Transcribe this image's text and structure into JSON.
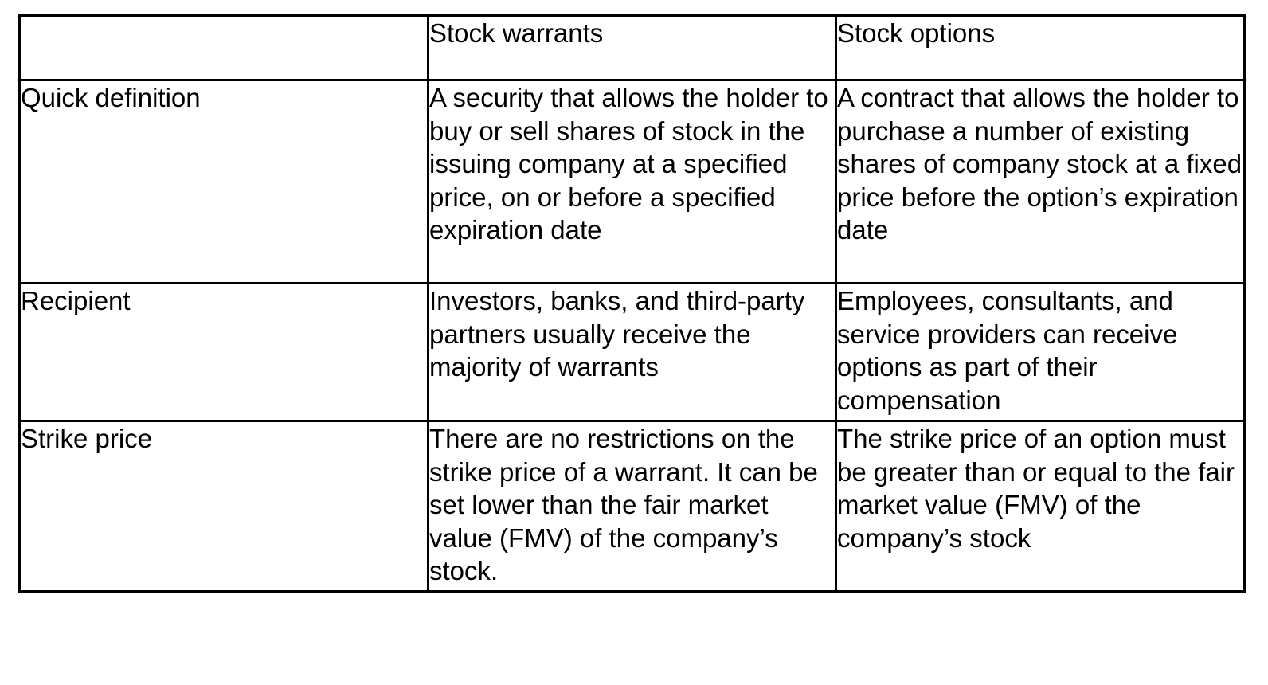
{
  "table": {
    "columns": [
      "",
      "Stock warrants",
      "Stock options"
    ],
    "rows": [
      {
        "label": "Quick definition",
        "warrants": "A security that allows the holder to buy or sell shares of stock in the issuing company at a specified price, on or before a specified expiration date",
        "options": "A contract that allows the holder to purchase a number of existing shares of company stock at a fixed price before the option’s expiration date"
      },
      {
        "label": "Recipient",
        "warrants": "Investors, banks, and third-party partners usually receive the majority of warrants",
        "options": "Employees, consultants, and service providers can receive options as part of their compensation"
      },
      {
        "label": "Strike price",
        "warrants": "There are no restrictions on the strike price of a warrant. It can be set lower than the fair market value (FMV) of the company’s stock.",
        "options": "The strike price of an option must be greater than or equal to the fair market value (FMV) of the company’s stock"
      }
    ]
  },
  "colors": {
    "border": "#000000",
    "text": "#000000",
    "background": "#ffffff"
  }
}
